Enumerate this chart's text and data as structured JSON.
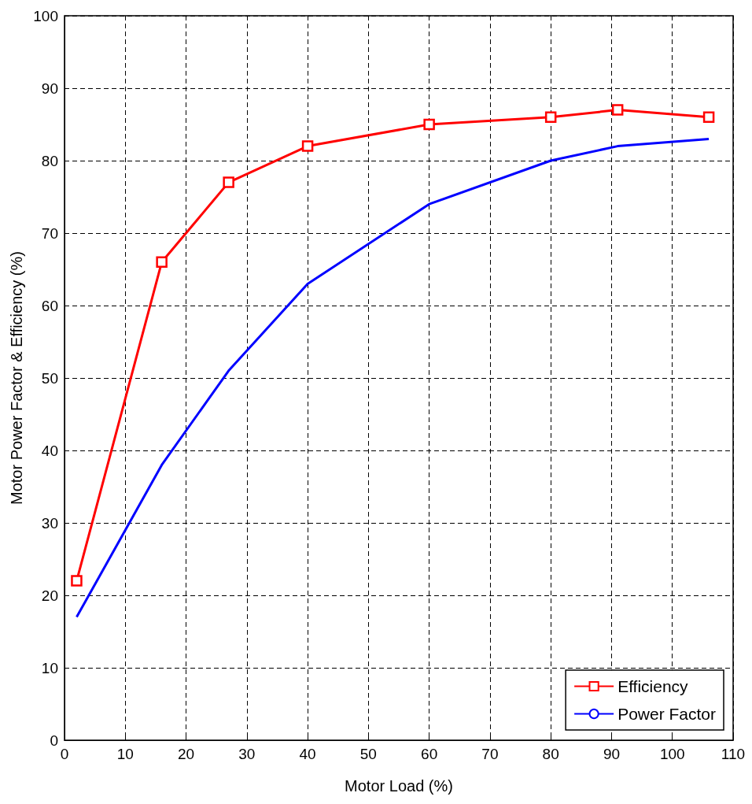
{
  "chart_data": {
    "type": "line",
    "xlabel": "Motor Load (%)",
    "ylabel": "Motor Power Factor & Efficiency (%)",
    "xlim": [
      0,
      110
    ],
    "xticks": [
      0,
      10,
      20,
      30,
      40,
      50,
      60,
      70,
      80,
      90,
      100,
      110
    ],
    "ylim": [
      0,
      100
    ],
    "yticks": [
      0,
      10,
      20,
      30,
      40,
      50,
      60,
      70,
      80,
      90,
      100
    ],
    "grid": true,
    "legend": "bottom right",
    "series": [
      {
        "name": "Efficiency",
        "color": "#ff0000",
        "marker": "square",
        "x": [
          2,
          16,
          27,
          40,
          60,
          80,
          91,
          106
        ],
        "values": [
          22,
          66,
          77,
          82,
          85,
          86,
          87,
          86
        ]
      },
      {
        "name": "Power Factor",
        "color": "#0000ff",
        "marker": "none",
        "x": [
          2,
          16,
          27,
          40,
          60,
          80,
          91,
          106
        ],
        "values": [
          17,
          38,
          51,
          63,
          74,
          80,
          82,
          83
        ]
      }
    ]
  }
}
